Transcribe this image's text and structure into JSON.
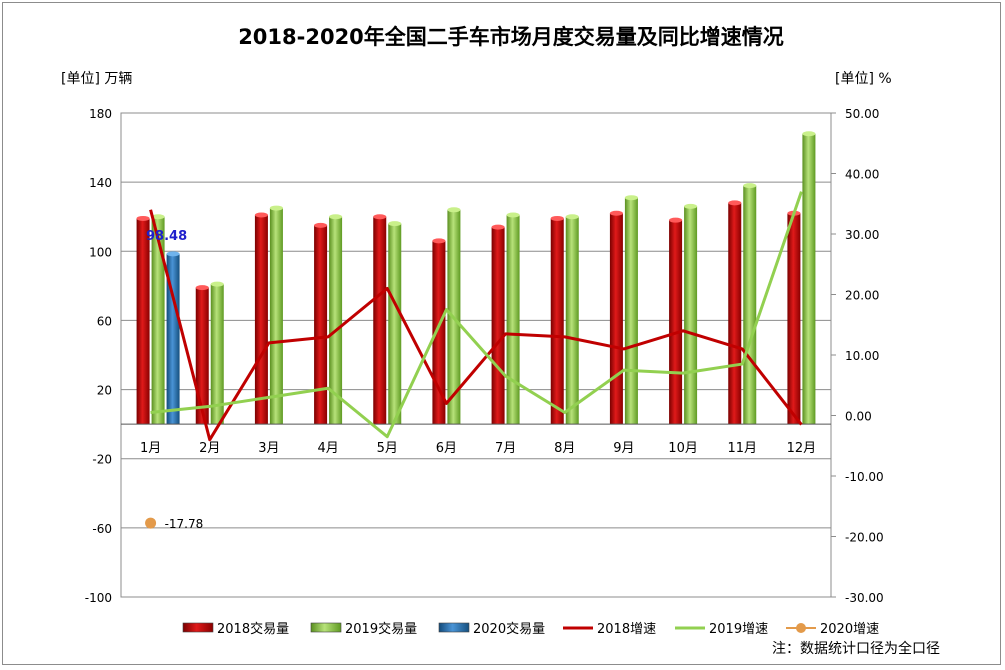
{
  "chart_data": {
    "type": "bar",
    "title": "2018-2020年全国二手车市场月度交易量及同比增速情况",
    "ylabel_left": "[单位] 万辆",
    "ylabel_right": "[单位] %",
    "categories": [
      "1月",
      "2月",
      "3月",
      "4月",
      "5月",
      "6月",
      "7月",
      "8月",
      "9月",
      "10月",
      "11月",
      "12月"
    ],
    "left_axis": {
      "min": -100,
      "max": 180,
      "ticks": [
        "180",
        "140",
        "100",
        "60",
        "20",
        "-20",
        "-60",
        "-100"
      ],
      "tick_values": [
        180,
        140,
        100,
        60,
        20,
        -20,
        -60,
        -100
      ]
    },
    "right_axis": {
      "min": -30,
      "max": 50,
      "ticks": [
        "50.00",
        "40.00",
        "30.00",
        "20.00",
        "10.00",
        "0.00",
        "-10.00",
        "-20.00",
        "-30.00"
      ],
      "tick_values": [
        50,
        40,
        30,
        20,
        10,
        0,
        -10,
        -20,
        -30
      ]
    },
    "bar_series": [
      {
        "name": "2018交易量",
        "color": "#c00000",
        "values": [
          119,
          79,
          121,
          115,
          120,
          106,
          114,
          119,
          122,
          118,
          128,
          122
        ]
      },
      {
        "name": "2019交易量",
        "color": "#92d050",
        "values": [
          120,
          81,
          125,
          120,
          116,
          124,
          121,
          120,
          131,
          126,
          138,
          168
        ]
      },
      {
        "name": "2020交易量",
        "color": "#2e75b6",
        "values": [
          98.48,
          null,
          null,
          null,
          null,
          null,
          null,
          null,
          null,
          null,
          null,
          null
        ]
      }
    ],
    "line_series": [
      {
        "name": "2018增速",
        "color": "#c00000",
        "values": [
          34,
          -4,
          12,
          13,
          21,
          2,
          13.5,
          13,
          11,
          14,
          11,
          -1.5
        ]
      },
      {
        "name": "2019增速",
        "color": "#92d050",
        "values": [
          0.5,
          1.5,
          3,
          4.5,
          -3.5,
          17.5,
          6.5,
          0.5,
          7.5,
          7,
          8.5,
          37
        ]
      }
    ],
    "point_series": [
      {
        "name": "2020增速",
        "color": "#e39a4a",
        "values": [
          -17.78,
          null,
          null,
          null,
          null,
          null,
          null,
          null,
          null,
          null,
          null,
          null
        ]
      }
    ],
    "data_labels": {
      "bar_2020_jan": "98.48",
      "point_2020_jan": "-17.78"
    },
    "legend_position": "bottom",
    "grid": true
  },
  "footnote": "注：数据统计口径为全口径"
}
